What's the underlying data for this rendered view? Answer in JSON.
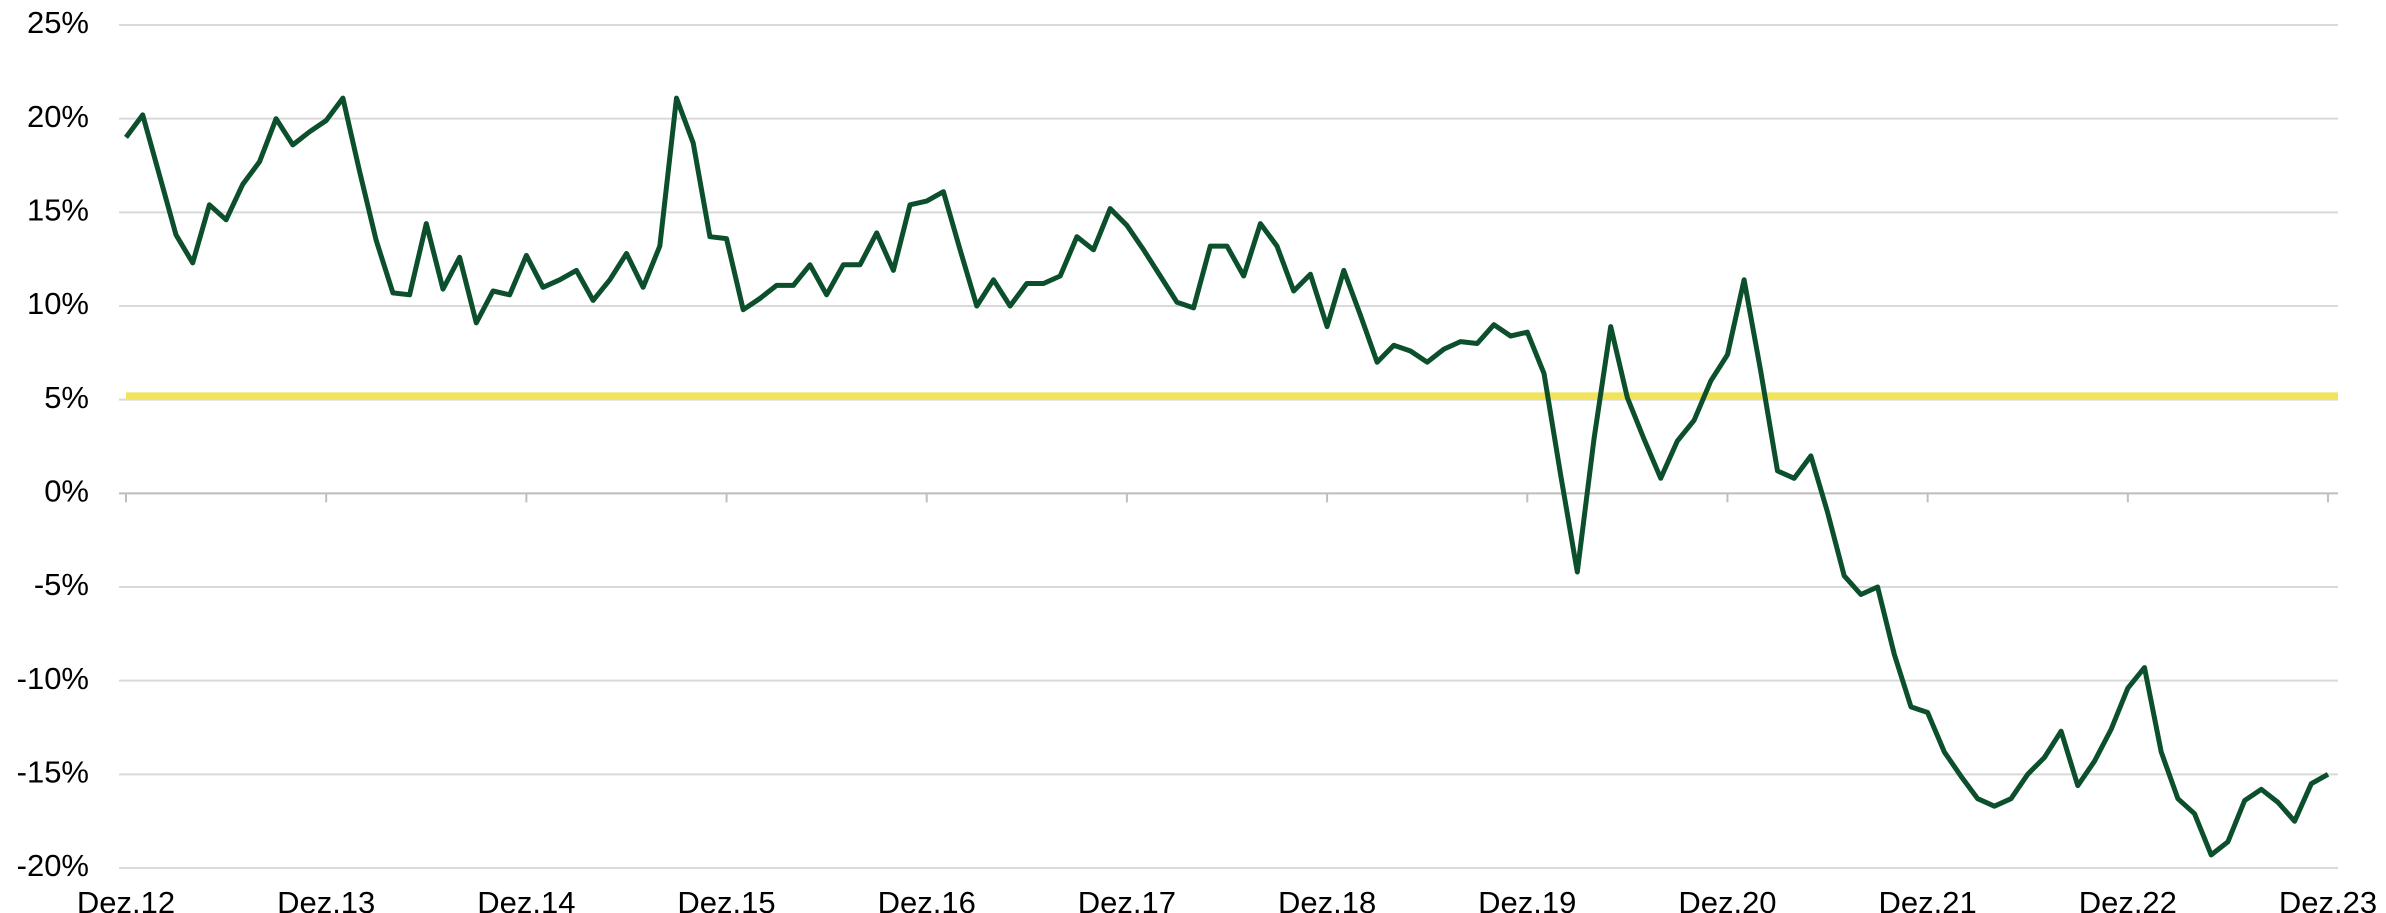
{
  "chart_data": {
    "type": "line",
    "categories": [
      "Dez.12",
      null,
      null,
      null,
      null,
      null,
      null,
      null,
      null,
      null,
      null,
      null,
      "Dez.13",
      null,
      null,
      null,
      null,
      null,
      null,
      null,
      null,
      null,
      null,
      null,
      "Dez.14",
      null,
      null,
      null,
      null,
      null,
      null,
      null,
      null,
      null,
      null,
      null,
      "Dez.15",
      null,
      null,
      null,
      null,
      null,
      null,
      null,
      null,
      null,
      null,
      null,
      "Dez.16",
      null,
      null,
      null,
      null,
      null,
      null,
      null,
      null,
      null,
      null,
      null,
      "Dez.17",
      null,
      null,
      null,
      null,
      null,
      null,
      null,
      null,
      null,
      null,
      null,
      "Dez.18",
      null,
      null,
      null,
      null,
      null,
      null,
      null,
      null,
      null,
      null,
      null,
      "Dez.19",
      null,
      null,
      null,
      null,
      null,
      null,
      null,
      null,
      null,
      null,
      null,
      "Dez.20",
      null,
      null,
      null,
      null,
      null,
      null,
      null,
      null,
      null,
      null,
      null,
      "Dez.21",
      null,
      null,
      null,
      null,
      null,
      null,
      null,
      null,
      null,
      null,
      null,
      "Dez.22",
      null,
      null,
      null,
      null,
      null,
      null,
      null,
      null,
      null,
      null,
      null,
      "Dez.23"
    ],
    "series": [
      {
        "color": "#0b4f2c",
        "values": [
          19,
          20.2,
          17,
          13.8,
          12.3,
          15.4,
          14.6,
          16.5,
          17.7,
          20,
          18.6,
          19.3,
          19.9,
          21.1,
          17.2,
          13.5,
          10.7,
          10.6,
          14.4,
          10.9,
          12.6,
          9.1,
          10.8,
          10.6,
          12.7,
          11,
          11.4,
          11.9,
          10.3,
          11.4,
          12.8,
          11,
          13.2,
          21.1,
          18.7,
          13.7,
          13.6,
          9.8,
          10.4,
          11.1,
          11.1,
          12.2,
          10.6,
          12.2,
          12.2,
          13.9,
          11.9,
          15.4,
          15.6,
          16.1,
          13,
          10,
          11.4,
          10,
          11.2,
          11.2,
          11.6,
          13.7,
          13,
          15.2,
          14.3,
          13,
          11.6,
          10.2,
          9.9,
          13.2,
          13.2,
          11.6,
          14.4,
          13.2,
          10.8,
          11.7,
          8.9,
          11.9,
          9.5,
          7,
          7.9,
          7.6,
          7,
          7.7,
          8.1,
          8,
          9,
          8.4,
          8.6,
          6.4,
          1,
          -4.2,
          2.9,
          8.9,
          5.1,
          2.9,
          0.8,
          2.8,
          3.9,
          6,
          7.4,
          11.4,
          6.5,
          1.2,
          0.8,
          2,
          -1,
          -4.4,
          -5.4,
          -5,
          -8.6,
          -11.4,
          -11.7,
          -13.8,
          -15.1,
          -16.3,
          -16.7,
          -16.3,
          -15,
          -14.1,
          -12.7,
          -15.6,
          -14.3,
          -12.6,
          -10.4,
          -9.3,
          -13.8,
          -16.3,
          -17.1,
          -19.3,
          -18.6,
          -16.4,
          -15.8,
          -16.5,
          -17.5,
          -15.5,
          -15
        ]
      }
    ],
    "reference_line": {
      "value": 5.2,
      "color": "#f2e35c"
    },
    "ylim": [
      -20,
      25
    ],
    "yticks": [
      {
        "value": -20,
        "label": "-20%"
      },
      {
        "value": -15,
        "label": "-15%"
      },
      {
        "value": -10,
        "label": "-10%"
      },
      {
        "value": -5,
        "label": "-5%"
      },
      {
        "value": 0,
        "label": "0%"
      },
      {
        "value": 5,
        "label": "5%"
      },
      {
        "value": 10,
        "label": "10%"
      },
      {
        "value": 15,
        "label": "15%"
      },
      {
        "value": 20,
        "label": "20%"
      },
      {
        "value": 25,
        "label": "25%"
      }
    ],
    "grid": true
  }
}
